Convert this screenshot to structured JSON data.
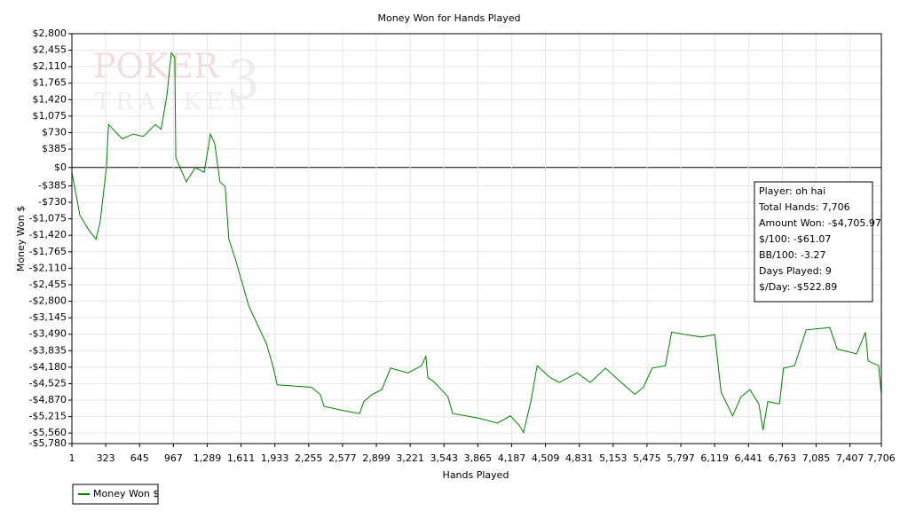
{
  "chart_data": {
    "type": "line",
    "title": "Money Won for Hands Played",
    "xlabel": "Hands Played",
    "ylabel": "Money Won $",
    "watermark": [
      "POKER",
      "TRACKER",
      "3"
    ],
    "annotations": [
      "Player: oh hai",
      "Total Hands: 7,706",
      "Amount Won: -$4,705.97",
      "$/100: -$61.07",
      "BB/100: -3.27",
      "Days Played: 9",
      "$/Day: -$522.89"
    ],
    "grid": true,
    "legend": "bottom-left",
    "xlim": [
      1,
      7706
    ],
    "ylim": [
      -5780,
      2800
    ],
    "xticks": [
      1,
      323,
      645,
      967,
      {
        "value": 1289,
        "label": "1,289"
      },
      {
        "value": 1611,
        "label": "1,611"
      },
      {
        "value": 1933,
        "label": "1,933"
      },
      {
        "value": 2255,
        "label": "2,255"
      },
      {
        "value": 2577,
        "label": "2,577"
      },
      {
        "value": 2899,
        "label": "2,899"
      },
      {
        "value": 3221,
        "label": "3,221"
      },
      {
        "value": 3543,
        "label": "3,543"
      },
      {
        "value": 3865,
        "label": "3,865"
      },
      {
        "value": 4187,
        "label": "4,187"
      },
      {
        "value": 4509,
        "label": "4,509"
      },
      {
        "value": 4831,
        "label": "4,831"
      },
      {
        "value": 5153,
        "label": "5,153"
      },
      {
        "value": 5475,
        "label": "5,475"
      },
      {
        "value": 5797,
        "label": "5,797"
      },
      {
        "value": 6119,
        "label": "6,119"
      },
      {
        "value": 6441,
        "label": "6,441"
      },
      {
        "value": 6763,
        "label": "6,763"
      },
      {
        "value": 7085,
        "label": "7,085"
      },
      {
        "value": 7407,
        "label": "7,407"
      },
      {
        "value": 7706,
        "label": "7,706"
      }
    ],
    "yticks": [
      {
        "value": 2800,
        "label": "$2,800"
      },
      {
        "value": 2455,
        "label": "$2,455"
      },
      {
        "value": 2110,
        "label": "$2,110"
      },
      {
        "value": 1765,
        "label": "$1,765"
      },
      {
        "value": 1420,
        "label": "$1,420"
      },
      {
        "value": 1075,
        "label": "$1,075"
      },
      {
        "value": 730,
        "label": "$730"
      },
      {
        "value": 385,
        "label": "$385"
      },
      {
        "value": 0,
        "label": "$0"
      },
      {
        "value": -385,
        "label": "-$385"
      },
      {
        "value": -730,
        "label": "-$730"
      },
      {
        "value": -1075,
        "label": "-$1,075"
      },
      {
        "value": -1420,
        "label": "-$1,420"
      },
      {
        "value": -1765,
        "label": "-$1,765"
      },
      {
        "value": -2110,
        "label": "-$2,110"
      },
      {
        "value": -2455,
        "label": "-$2,455"
      },
      {
        "value": -2800,
        "label": "-$2,800"
      },
      {
        "value": -3145,
        "label": "-$3,145"
      },
      {
        "value": -3490,
        "label": "-$3,490"
      },
      {
        "value": -3835,
        "label": "-$3,835"
      },
      {
        "value": -4180,
        "label": "-$4,180"
      },
      {
        "value": -4525,
        "label": "-$4,525"
      },
      {
        "value": -4870,
        "label": "-$4,870"
      },
      {
        "value": -5215,
        "label": "-$5,215"
      },
      {
        "value": -5560,
        "label": "-$5,560"
      },
      {
        "value": -5780,
        "label": "-$5,780"
      }
    ],
    "x": [
      1,
      77,
      160,
      230,
      270,
      330,
      350,
      480,
      585,
      680,
      795,
      850,
      905,
      947,
      980,
      990,
      1090,
      1175,
      1260,
      1320,
      1360,
      1410,
      1460,
      1495,
      1555,
      1685,
      1770,
      1855,
      1920,
      1955,
      2280,
      2365,
      2400,
      2610,
      2740,
      2780,
      2860,
      2950,
      3035,
      3200,
      3330,
      3370,
      3390,
      3455,
      3580,
      3625,
      3880,
      4050,
      4175,
      4260,
      4300,
      4370,
      4430,
      4555,
      4640,
      4810,
      4935,
      5080,
      5230,
      5360,
      5440,
      5525,
      5650,
      5710,
      5990,
      6120,
      6180,
      6290,
      6370,
      6455,
      6540,
      6580,
      6625,
      6735,
      6775,
      6880,
      6990,
      7215,
      7285,
      7470,
      7555,
      7580,
      7680,
      7706
    ],
    "series": [
      {
        "name": "Money Won $",
        "color": "#008000",
        "values": [
          -100,
          -1000,
          -1300,
          -1500,
          -1150,
          0,
          900,
          600,
          700,
          650,
          900,
          800,
          1500,
          2400,
          2300,
          200,
          -300,
          0,
          -100,
          700,
          500,
          -300,
          -400,
          -1500,
          -1900,
          -2900,
          -3300,
          -3700,
          -4200,
          -4550,
          -4600,
          -4750,
          -5000,
          -5100,
          -5150,
          -4900,
          -4750,
          -4650,
          -4200,
          -4300,
          -4150,
          -3950,
          -4400,
          -4500,
          -4800,
          -5150,
          -5250,
          -5350,
          -5200,
          -5400,
          -5550,
          -4900,
          -4150,
          -4400,
          -4500,
          -4300,
          -4500,
          -4200,
          -4500,
          -4750,
          -4600,
          -4200,
          -4150,
          -3450,
          -3550,
          -3500,
          -4700,
          -5200,
          -4800,
          -4650,
          -4950,
          -5500,
          -4900,
          -4950,
          -4200,
          -4150,
          -3400,
          -3350,
          -3800,
          -3900,
          -3450,
          -4050,
          -4150,
          -4750
        ]
      }
    ]
  }
}
